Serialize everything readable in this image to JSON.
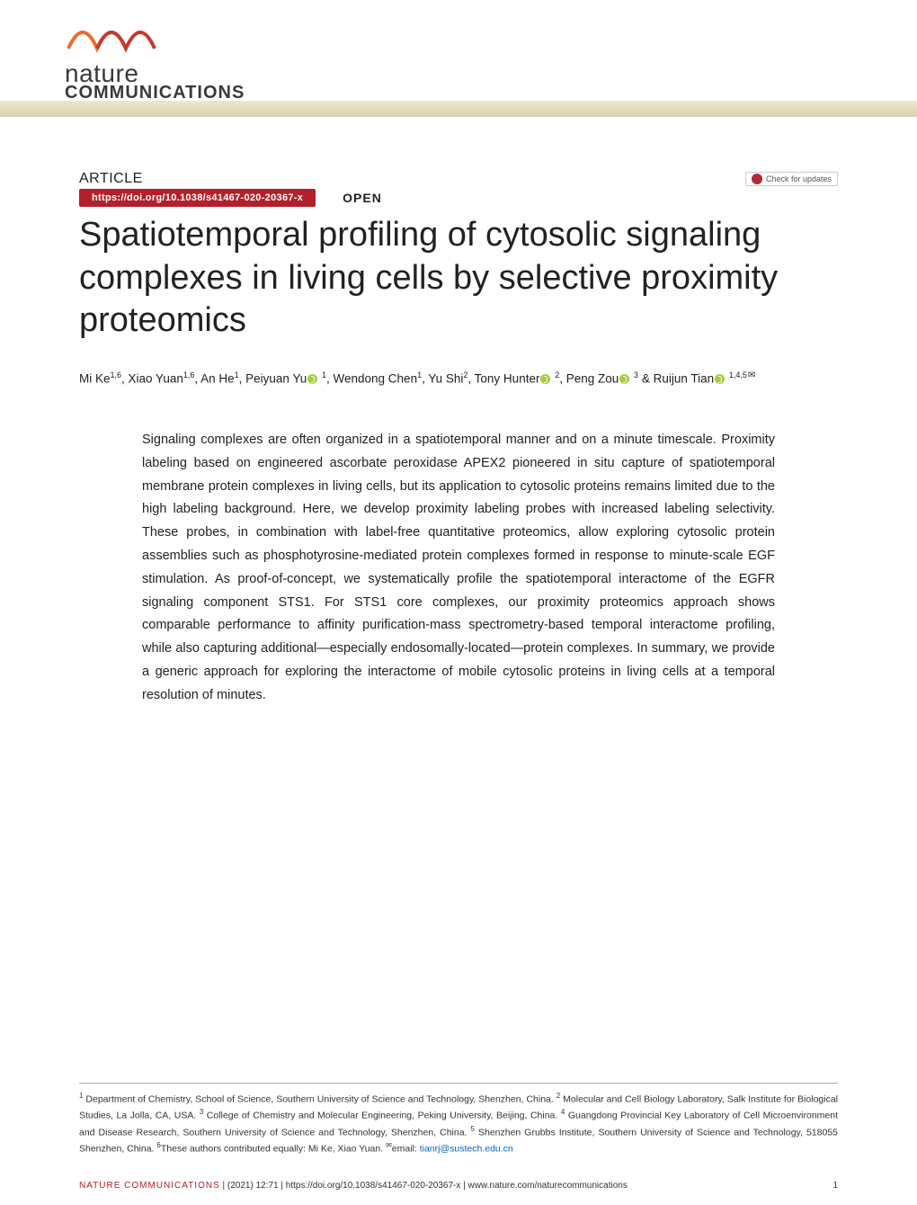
{
  "brand": {
    "line1": "nature",
    "line2": "COMMUNICATIONS",
    "swoosh_color1": "#e86e2c",
    "swoosh_color2": "#c43a2d"
  },
  "header": {
    "article_label": "ARTICLE",
    "check_updates": "Check for updates",
    "doi": "https://doi.org/10.1038/s41467-020-20367-x",
    "open": "OPEN",
    "doi_badge_bg": "#b4202a"
  },
  "title": "Spatiotemporal profiling of cytosolic signaling complexes in living cells by selective proximity proteomics",
  "authors_html": "Mi Ke<sup>1,6</sup>, Xiao Yuan<sup>1,6</sup>, An He<sup>1</sup>, Peiyuan Yu<span class='orcid' data-name='orcid-icon' data-interactable='false'></span> <sup>1</sup>, Wendong Chen<sup>1</sup>, Yu Shi<sup>2</sup>, Tony Hunter<span class='orcid' data-name='orcid-icon' data-interactable='false'></span> <sup>2</sup>, Peng Zou<span class='orcid' data-name='orcid-icon' data-interactable='false'></span> <sup>3</sup> &amp; Ruijun Tian<span class='orcid' data-name='orcid-icon' data-interactable='false'></span> <sup>1,4,5</sup><span class='mail-icon' data-name='mail-icon' data-interactable='false'>✉</span>",
  "abstract": "Signaling complexes are often organized in a spatiotemporal manner and on a minute timescale. Proximity labeling based on engineered ascorbate peroxidase APEX2 pioneered in situ capture of spatiotemporal membrane protein complexes in living cells, but its application to cytosolic proteins remains limited due to the high labeling background. Here, we develop proximity labeling probes with increased labeling selectivity. These probes, in combination with label-free quantitative proteomics, allow exploring cytosolic protein assemblies such as phosphotyrosine-mediated protein complexes formed in response to minute-scale EGF stimulation. As proof-of-concept, we systematically profile the spatiotemporal interactome of the EGFR signaling component STS1. For STS1 core complexes, our proximity proteomics approach shows comparable performance to affinity purification-mass spectrometry-based temporal interactome profiling, while also capturing additional—especially endosomally-located—protein complexes. In summary, we provide a generic approach for exploring the interactome of mobile cytosolic proteins in living cells at a temporal resolution of minutes.",
  "affiliations_html": "<sup>1</sup> Department of Chemistry, School of Science, Southern University of Science and Technology, Shenzhen, China. <sup>2</sup> Molecular and Cell Biology Laboratory, Salk Institute for Biological Studies, La Jolla, CA, USA. <sup>3</sup> College of Chemistry and Molecular Engineering, Peking University, Beijing, China. <sup>4</sup> Guangdong Provincial Key Laboratory of Cell Microenvironment and Disease Research, Southern University of Science and Technology, Shenzhen, China. <sup>5</sup> Shenzhen Grubbs Institute, Southern University of Science and Technology, 518055 Shenzhen, China. <sup>6</sup>These authors contributed equally: Mi Ke, Xiao Yuan. <sup>✉</sup>email: <span class='email-link'>tianrj@sustech.edu.cn</span>",
  "footer": {
    "journal": "NATURE COMMUNICATIONS",
    "citation": "(2021) 12:71 | https://doi.org/10.1038/s41467-020-20367-x | www.nature.com/naturecommunications",
    "page": "1",
    "divider": " |    "
  },
  "colors": {
    "text": "#222222",
    "accent": "#b4202a",
    "link": "#0066cc",
    "orcid": "#a6ce39",
    "band_top": "#eee6d1",
    "band_bottom": "#d8cfae"
  }
}
